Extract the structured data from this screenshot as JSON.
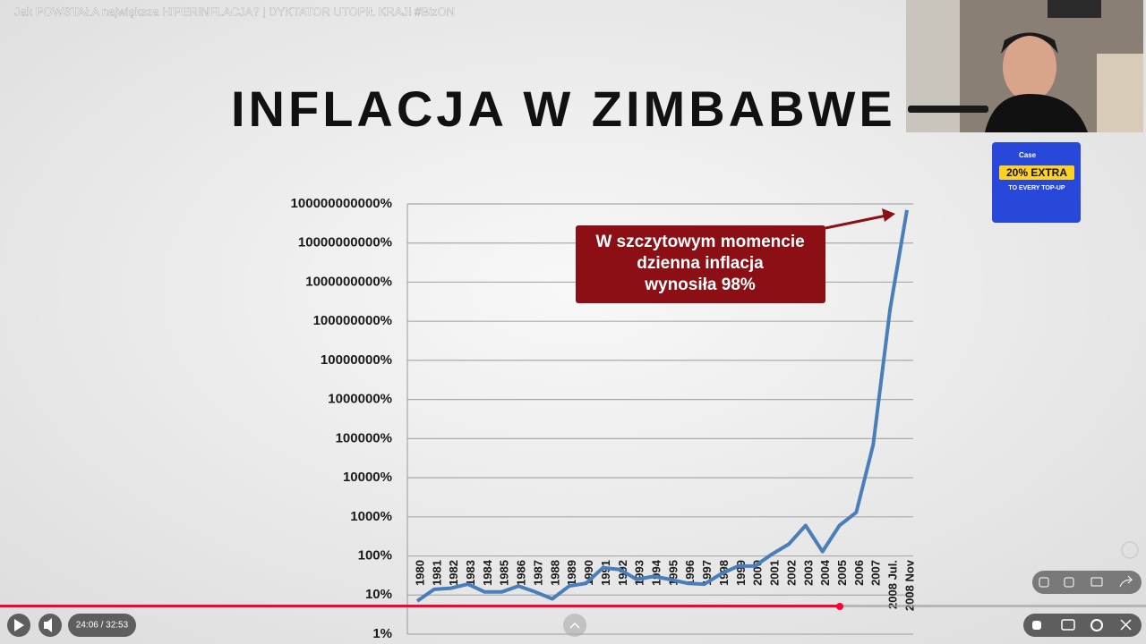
{
  "video": {
    "title": "Jak POWSTAŁA największa HIPERINFLACJA? | DYKTATOR UTOPIŁ KRAJ! #BizON",
    "time": "24:06 / 32:53"
  },
  "ad": {
    "brand": "Case",
    "headline": "20% EXTRA",
    "subline": "TO EVERY TOP-UP"
  },
  "chart_data": {
    "type": "line",
    "title": "INFLACJA W ZIMBABWE",
    "categories": [
      "1980",
      "1981",
      "1982",
      "1983",
      "1984",
      "1985",
      "1986",
      "1987",
      "1988",
      "1989",
      "1990",
      "1991",
      "1992",
      "1993",
      "1994",
      "1995",
      "1996",
      "1997",
      "1998",
      "1999",
      "2000",
      "2001",
      "2002",
      "2003",
      "2004",
      "2005",
      "2006",
      "2007",
      "2008 Jul.",
      "2008 Nov"
    ],
    "values": [
      7,
      14,
      15,
      19,
      12,
      12,
      17,
      12,
      8,
      17,
      20,
      50,
      45,
      25,
      30,
      25,
      20,
      19,
      35,
      55,
      55,
      110,
      200,
      600,
      130,
      600,
      1300,
      70000,
      200000000,
      70000000000
    ],
    "color": "#4a7ebb",
    "log_scale": true,
    "grid": true,
    "ylim": [
      1,
      100000000000
    ],
    "yticks": [
      {
        "value": 1,
        "label": "1%"
      },
      {
        "value": 10,
        "label": "10%"
      },
      {
        "value": 100,
        "label": "100%"
      },
      {
        "value": 1000,
        "label": "1000%"
      },
      {
        "value": 10000,
        "label": "10000%"
      },
      {
        "value": 100000,
        "label": "100000%"
      },
      {
        "value": 1000000,
        "label": "1000000%"
      },
      {
        "value": 10000000,
        "label": "10000000%"
      },
      {
        "value": 100000000,
        "label": "100000000%"
      },
      {
        "value": 1000000000,
        "label": "1000000000%"
      },
      {
        "value": 10000000000,
        "label": "10000000000%"
      },
      {
        "value": 100000000000,
        "label": "100000000000%"
      }
    ],
    "annotation": [
      "W szczytowym momencie",
      "dzienna inflacja",
      "wynosiła 98%"
    ]
  }
}
